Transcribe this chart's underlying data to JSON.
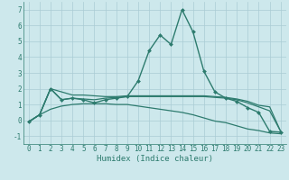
{
  "xlabel": "Humidex (Indice chaleur)",
  "x": [
    0,
    1,
    2,
    3,
    4,
    5,
    6,
    7,
    8,
    9,
    10,
    11,
    12,
    13,
    14,
    15,
    16,
    17,
    18,
    19,
    20,
    21,
    22,
    23
  ],
  "series": [
    {
      "y": [
        -0.1,
        0.35,
        2.0,
        1.3,
        1.4,
        1.3,
        1.1,
        1.3,
        1.4,
        1.5,
        2.5,
        4.4,
        5.4,
        4.8,
        7.0,
        5.6,
        3.1,
        1.8,
        1.4,
        1.2,
        0.8,
        0.5,
        -0.7,
        -0.75
      ],
      "color": "#2d7b6e",
      "marker": "D",
      "markersize": 2.0,
      "linewidth": 1.0
    },
    {
      "y": [
        -0.1,
        0.35,
        2.0,
        1.8,
        1.6,
        1.6,
        1.55,
        1.5,
        1.5,
        1.55,
        1.55,
        1.55,
        1.55,
        1.55,
        1.55,
        1.55,
        1.55,
        1.5,
        1.45,
        1.35,
        1.2,
        0.95,
        0.85,
        -0.7
      ],
      "color": "#2d7b6e",
      "marker": null,
      "markersize": 0,
      "linewidth": 0.9
    },
    {
      "y": [
        -0.1,
        0.35,
        2.0,
        1.3,
        1.4,
        1.35,
        1.3,
        1.4,
        1.45,
        1.5,
        1.5,
        1.5,
        1.5,
        1.5,
        1.5,
        1.5,
        1.5,
        1.45,
        1.4,
        1.3,
        1.1,
        0.85,
        0.6,
        -0.7
      ],
      "color": "#2d7b6e",
      "marker": null,
      "markersize": 0,
      "linewidth": 0.9
    },
    {
      "y": [
        -0.1,
        0.35,
        0.7,
        0.9,
        1.0,
        1.05,
        1.05,
        1.05,
        1.0,
        1.0,
        0.9,
        0.8,
        0.7,
        0.6,
        0.5,
        0.35,
        0.15,
        -0.05,
        -0.15,
        -0.35,
        -0.55,
        -0.65,
        -0.8,
        -0.85
      ],
      "color": "#2d7b6e",
      "marker": null,
      "markersize": 0,
      "linewidth": 0.9
    }
  ],
  "xlim": [
    -0.5,
    23.5
  ],
  "ylim": [
    -1.5,
    7.5
  ],
  "yticks": [
    -1,
    0,
    1,
    2,
    3,
    4,
    5,
    6,
    7
  ],
  "xticks": [
    0,
    1,
    2,
    3,
    4,
    5,
    6,
    7,
    8,
    9,
    10,
    11,
    12,
    13,
    14,
    15,
    16,
    17,
    18,
    19,
    20,
    21,
    22,
    23
  ],
  "bg_color": "#cde8ec",
  "grid_color": "#aaccd4",
  "line_color": "#2d7b6e",
  "tick_fontsize": 5.5,
  "xlabel_fontsize": 6.5
}
